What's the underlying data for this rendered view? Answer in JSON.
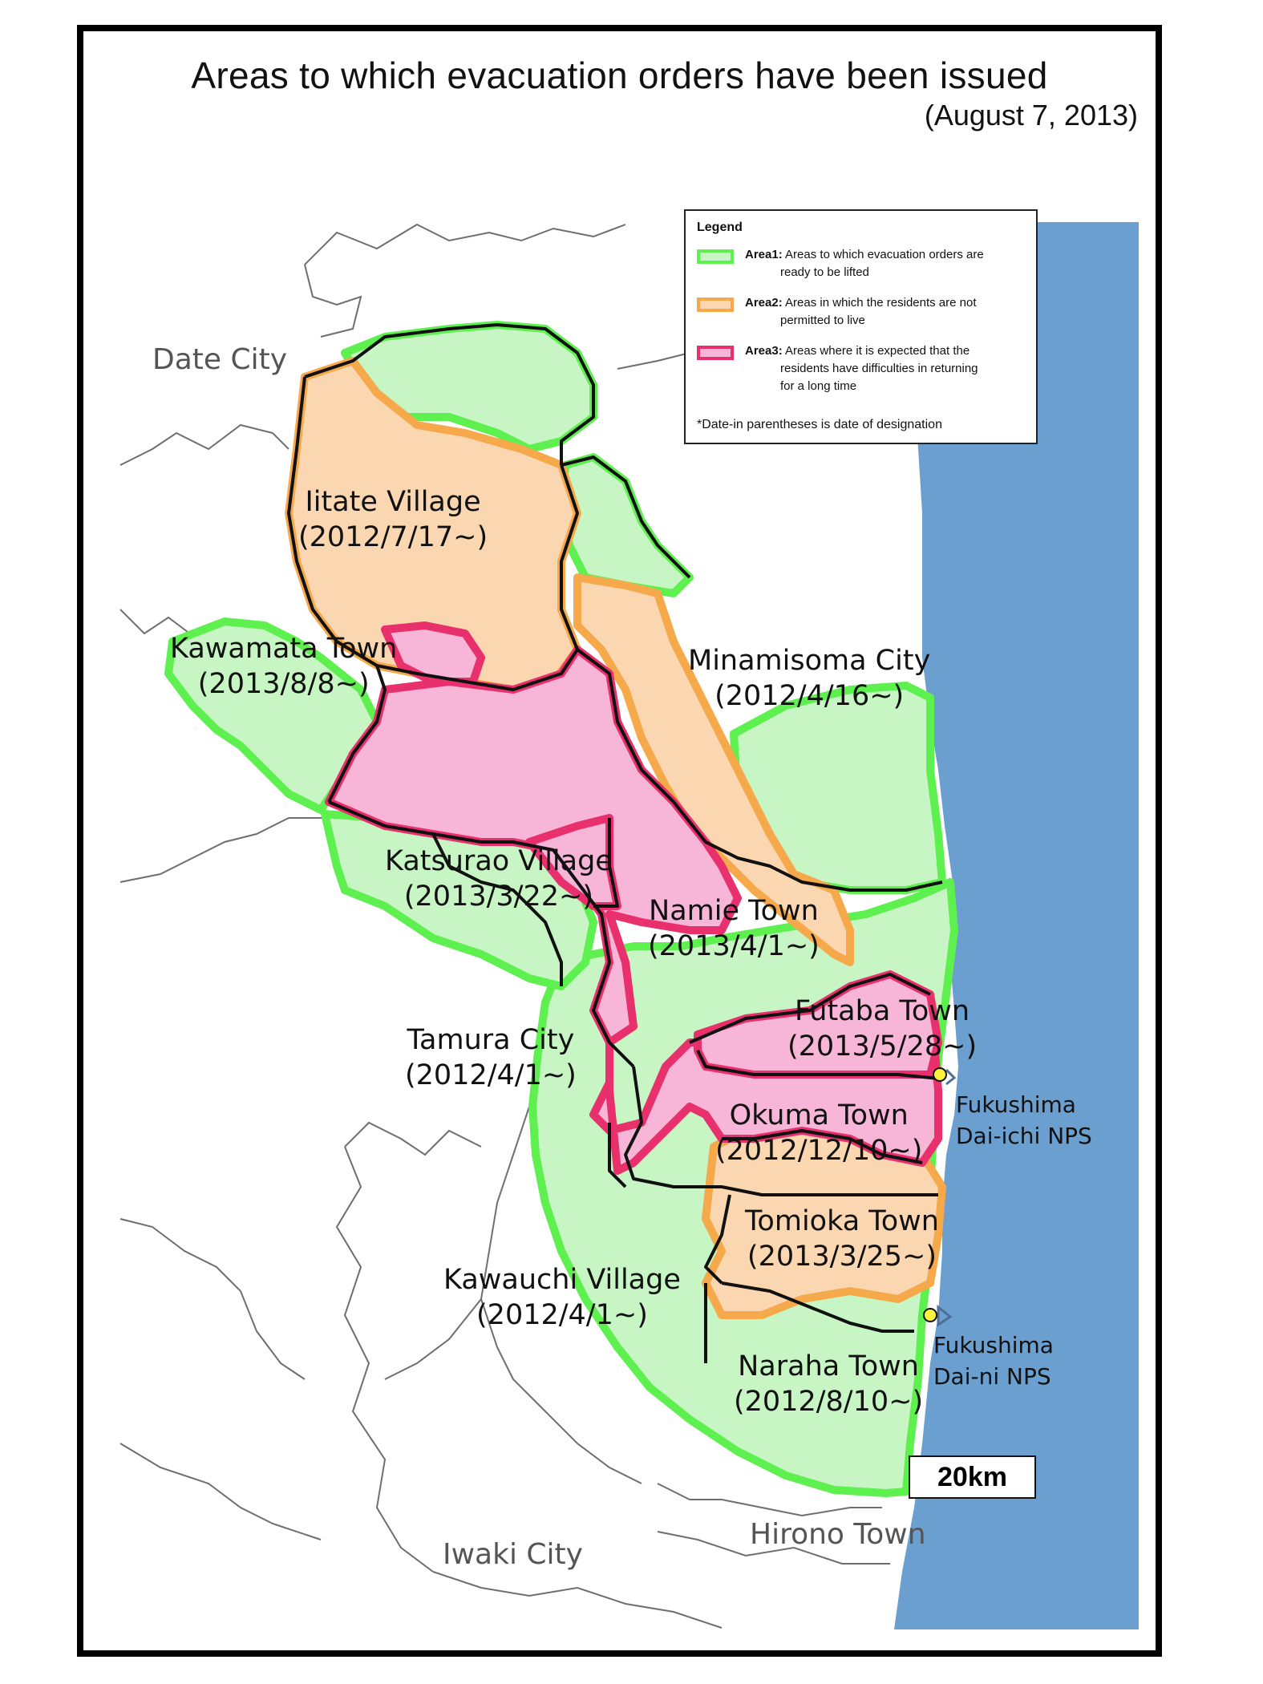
{
  "title": "Areas to which evacuation orders have been issued",
  "date": "(August 7, 2013)",
  "legend": {
    "title": "Legend",
    "items": [
      {
        "name": "Area1:",
        "desc1": "Areas to which evacuation orders are",
        "desc2": "ready to be lifted",
        "fill": "#c7f5c3",
        "stroke": "#5df04f"
      },
      {
        "name": "Area2:",
        "desc1": "Areas in which the residents are not",
        "desc2": "permitted to live",
        "fill": "#fbd7b1",
        "stroke": "#f5a94a"
      },
      {
        "name": "Area3:",
        "desc1": "Areas where it is expected that the",
        "desc2": "residents have difficulties in returning",
        "desc3": "for a long time",
        "fill": "#f7b6d8",
        "stroke": "#e8306d"
      }
    ],
    "note": "*Date-in parentheses is date of designation"
  },
  "municipalities": [
    {
      "name": "Iitate Village",
      "date": "(2012/7/17~)"
    },
    {
      "name": "Kawamata Town",
      "date": "(2013/8/8~)"
    },
    {
      "name": "Minamisoma City",
      "date": "(2012/4/16~)"
    },
    {
      "name": "Katsurao Village",
      "date": "(2013/3/22~)"
    },
    {
      "name": "Namie Town",
      "date": "(2013/4/1~)"
    },
    {
      "name": "Futaba Town",
      "date": "(2013/5/28~)"
    },
    {
      "name": "Tamura City",
      "date": "(2012/4/1~)"
    },
    {
      "name": "Okuma Town",
      "date": "(2012/12/10~)"
    },
    {
      "name": "Tomioka Town",
      "date": "(2013/3/25~)"
    },
    {
      "name": "Kawauchi Village",
      "date": "(2012/4/1~)"
    },
    {
      "name": "Naraha Town",
      "date": "(2012/8/10~)"
    }
  ],
  "outside_labels": {
    "date_city": "Date City",
    "iwaki_city": "Iwaki City",
    "hirono_town": "Hirono Town"
  },
  "power_plants": [
    {
      "line1": "Fukushima",
      "line2": "Dai-ichi NPS"
    },
    {
      "line1": "Fukushima",
      "line2": "Dai-ni NPS"
    }
  ],
  "scale_label": "20km",
  "colors": {
    "sea": "#6a9fcf",
    "land": "#ffffff",
    "area1_fill": "#c7f5c3",
    "area1_stroke": "#5df04f",
    "area2_fill": "#fbd7b1",
    "area2_stroke": "#f5a94a",
    "area3_fill": "#f7b6d8",
    "area3_stroke": "#e8306d",
    "npp_marker": "#fff23a"
  }
}
